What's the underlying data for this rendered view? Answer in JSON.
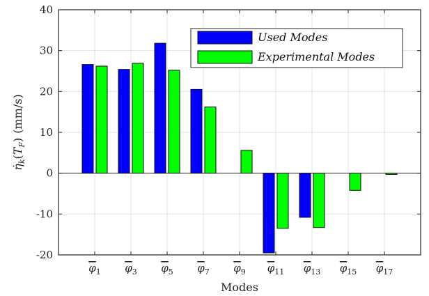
{
  "chart_data": {
    "type": "bar",
    "categories": [
      "φ̄1",
      "φ̄3",
      "φ̄5",
      "φ̄7",
      "φ̄9",
      "φ̄11",
      "φ̄13",
      "φ̄15",
      "φ̄17"
    ],
    "category_base": "φ",
    "category_subscripts": [
      "1",
      "3",
      "5",
      "7",
      "9",
      "11",
      "13",
      "15",
      "17"
    ],
    "series": [
      {
        "name": "Used Modes",
        "color": "#0000ff",
        "values": [
          26.6,
          25.4,
          31.8,
          20.5,
          0.0,
          -19.5,
          -10.8,
          0.0,
          0.0
        ]
      },
      {
        "name": "Experimental Modes",
        "color": "#00ff00",
        "values": [
          26.2,
          26.9,
          25.2,
          16.2,
          5.6,
          -13.5,
          -13.3,
          -4.2,
          -0.3
        ]
      }
    ],
    "xlabel": "Modes",
    "ylabel": "η̇k(TF) (mm/s)",
    "ylabel_parts": {
      "eta": "η̇",
      "k": "k",
      "open": "(",
      "T": "T",
      "F": "F",
      "close": ")",
      "units": "(mm/s)"
    },
    "ylim": [
      -20,
      40
    ],
    "yticks": [
      "-20",
      "-10",
      "0",
      "10",
      "20",
      "30",
      "40"
    ],
    "grid": true,
    "legend_position": "top-right"
  }
}
